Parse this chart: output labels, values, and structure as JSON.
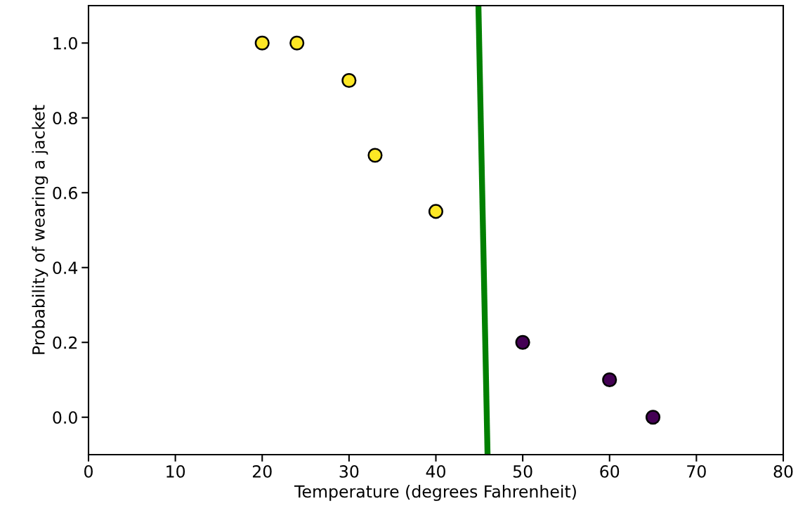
{
  "chart_data": {
    "type": "scatter",
    "xlabel": "Temperature (degrees Fahrenheit)",
    "ylabel": "Probability of wearing a jacket",
    "series": [
      {
        "color": "#fde725",
        "x": [
          20,
          24,
          30,
          33,
          40
        ],
        "values": [
          1.0,
          1.0,
          0.9,
          0.7,
          0.55
        ]
      },
      {
        "color": "#440154",
        "x": [
          50,
          60,
          65
        ],
        "values": [
          0.2,
          0.1,
          0.0
        ]
      },
      {
        "type": "line",
        "marker": "none",
        "color": "#008000",
        "x": [
          44.9,
          45.95
        ],
        "values": [
          1.1,
          -0.1
        ]
      }
    ],
    "xlim": [
      0,
      80
    ],
    "xticks": [
      0,
      10,
      20,
      30,
      40,
      50,
      60,
      70,
      80
    ],
    "ylim": [
      -0.1,
      1.1
    ],
    "yticks": [
      {
        "value": 0,
        "label": "0.0"
      },
      {
        "value": 0.2,
        "label": "0.2"
      },
      {
        "value": 0.4,
        "label": "0.4"
      },
      {
        "value": 0.6,
        "label": "0.6"
      },
      {
        "value": 0.8,
        "label": "0.8"
      },
      {
        "value": 1,
        "label": "1.0"
      }
    ],
    "marker": "circle",
    "grid": false
  }
}
